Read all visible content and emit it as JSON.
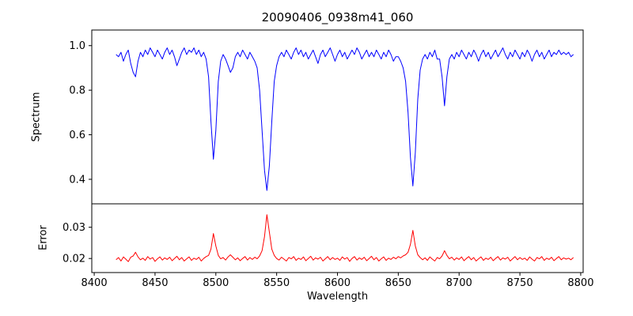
{
  "x": {
    "label": "Wavelength",
    "lim": [
      8398,
      8802
    ],
    "ticks": {
      "values": [
        8400,
        8450,
        8500,
        8550,
        8600,
        8650,
        8700,
        8750,
        8800
      ],
      "labels": [
        "8400",
        "8450",
        "8500",
        "8550",
        "8600",
        "8650",
        "8700",
        "8750",
        "8800"
      ]
    }
  },
  "chart_data": [
    {
      "type": "line",
      "name": "spectrum",
      "title": "20090406_0938m41_060",
      "xlabel": "",
      "ylabel": "Spectrum",
      "color": "#0000ff",
      "x0": 8418,
      "dx": 2,
      "ylim": [
        0.29,
        1.07
      ],
      "yticks": {
        "values": [
          0.4,
          0.6,
          0.8,
          1.0
        ],
        "labels": [
          "0.4",
          "0.6",
          "0.8",
          "1.0"
        ]
      },
      "absorption_line_centers": [
        8498,
        8542,
        8662,
        8688
      ],
      "values": [
        0.96,
        0.95,
        0.97,
        0.93,
        0.96,
        0.98,
        0.92,
        0.88,
        0.86,
        0.93,
        0.97,
        0.95,
        0.98,
        0.96,
        0.99,
        0.97,
        0.95,
        0.98,
        0.96,
        0.94,
        0.97,
        0.99,
        0.96,
        0.98,
        0.95,
        0.91,
        0.94,
        0.97,
        0.99,
        0.96,
        0.98,
        0.97,
        0.99,
        0.96,
        0.98,
        0.95,
        0.97,
        0.94,
        0.86,
        0.66,
        0.49,
        0.62,
        0.84,
        0.93,
        0.96,
        0.94,
        0.91,
        0.88,
        0.9,
        0.95,
        0.97,
        0.95,
        0.98,
        0.96,
        0.94,
        0.97,
        0.95,
        0.93,
        0.9,
        0.8,
        0.62,
        0.44,
        0.35,
        0.46,
        0.66,
        0.84,
        0.91,
        0.95,
        0.97,
        0.95,
        0.98,
        0.96,
        0.94,
        0.97,
        0.99,
        0.96,
        0.98,
        0.95,
        0.97,
        0.94,
        0.96,
        0.98,
        0.95,
        0.92,
        0.96,
        0.98,
        0.95,
        0.97,
        0.99,
        0.96,
        0.93,
        0.96,
        0.98,
        0.95,
        0.97,
        0.94,
        0.96,
        0.98,
        0.96,
        0.99,
        0.97,
        0.94,
        0.96,
        0.98,
        0.95,
        0.97,
        0.95,
        0.98,
        0.96,
        0.94,
        0.97,
        0.95,
        0.98,
        0.96,
        0.93,
        0.95,
        0.95,
        0.93,
        0.9,
        0.84,
        0.7,
        0.5,
        0.37,
        0.52,
        0.76,
        0.89,
        0.94,
        0.96,
        0.94,
        0.97,
        0.95,
        0.98,
        0.94,
        0.94,
        0.86,
        0.73,
        0.86,
        0.94,
        0.96,
        0.94,
        0.97,
        0.95,
        0.98,
        0.96,
        0.94,
        0.97,
        0.95,
        0.98,
        0.96,
        0.93,
        0.96,
        0.98,
        0.95,
        0.97,
        0.94,
        0.96,
        0.98,
        0.95,
        0.97,
        0.99,
        0.96,
        0.94,
        0.97,
        0.95,
        0.98,
        0.96,
        0.94,
        0.97,
        0.95,
        0.98,
        0.96,
        0.93,
        0.96,
        0.98,
        0.95,
        0.97,
        0.94,
        0.96,
        0.98,
        0.95,
        0.97,
        0.96,
        0.98,
        0.96,
        0.97,
        0.96,
        0.97,
        0.95,
        0.96
      ]
    },
    {
      "type": "line",
      "name": "error",
      "xlabel": "Wavelength",
      "ylabel": "Error",
      "color": "#ff0000",
      "x0": 8418,
      "dx": 2,
      "ylim": [
        0.0155,
        0.0375
      ],
      "yticks": {
        "values": [
          0.02,
          0.03
        ],
        "labels": [
          "0.02",
          "0.03"
        ]
      },
      "peak_centers": [
        8498,
        8542,
        8662,
        8688
      ],
      "values": [
        0.0196,
        0.0203,
        0.0192,
        0.0205,
        0.0198,
        0.019,
        0.0204,
        0.0208,
        0.022,
        0.0205,
        0.0196,
        0.0201,
        0.0194,
        0.0206,
        0.0198,
        0.0203,
        0.0191,
        0.0199,
        0.0205,
        0.0195,
        0.0202,
        0.0197,
        0.0204,
        0.0193,
        0.02,
        0.0207,
        0.0196,
        0.0203,
        0.0192,
        0.0199,
        0.0205,
        0.0194,
        0.0201,
        0.0197,
        0.0204,
        0.0192,
        0.02,
        0.0206,
        0.021,
        0.023,
        0.028,
        0.024,
        0.021,
        0.0199,
        0.0203,
        0.0195,
        0.0205,
        0.0212,
        0.0204,
        0.0196,
        0.0202,
        0.0193,
        0.02,
        0.0206,
        0.0195,
        0.0203,
        0.0197,
        0.0204,
        0.0199,
        0.0208,
        0.0225,
        0.027,
        0.034,
        0.0285,
        0.023,
        0.021,
        0.02,
        0.0195,
        0.0204,
        0.0198,
        0.0192,
        0.0203,
        0.0199,
        0.0206,
        0.0194,
        0.0201,
        0.0197,
        0.0205,
        0.0193,
        0.02,
        0.0207,
        0.0195,
        0.0202,
        0.0198,
        0.0204,
        0.0192,
        0.0199,
        0.0206,
        0.0196,
        0.0203,
        0.0197,
        0.0201,
        0.0194,
        0.0205,
        0.0198,
        0.0203,
        0.0191,
        0.02,
        0.0206,
        0.0195,
        0.0202,
        0.0197,
        0.0204,
        0.0193,
        0.02,
        0.0207,
        0.0196,
        0.0203,
        0.0192,
        0.0199,
        0.0205,
        0.0194,
        0.0201,
        0.0197,
        0.0204,
        0.0199,
        0.0206,
        0.0202,
        0.0208,
        0.0212,
        0.022,
        0.0245,
        0.029,
        0.024,
        0.0212,
        0.0203,
        0.0196,
        0.0202,
        0.0194,
        0.0205,
        0.0198,
        0.0192,
        0.0203,
        0.0199,
        0.0208,
        0.0225,
        0.021,
        0.0199,
        0.0204,
        0.0195,
        0.0202,
        0.0197,
        0.0205,
        0.0193,
        0.02,
        0.0206,
        0.0196,
        0.0203,
        0.0192,
        0.0199,
        0.0205,
        0.0194,
        0.0201,
        0.0197,
        0.0204,
        0.0193,
        0.02,
        0.0206,
        0.0195,
        0.0202,
        0.0198,
        0.0204,
        0.0192,
        0.0199,
        0.0206,
        0.0196,
        0.0203,
        0.0197,
        0.0201,
        0.0194,
        0.0205,
        0.0198,
        0.0192,
        0.0203,
        0.0199,
        0.0206,
        0.0194,
        0.0201,
        0.0197,
        0.0204,
        0.0193,
        0.02,
        0.0206,
        0.0196,
        0.0202,
        0.0198,
        0.0201,
        0.0196,
        0.0203
      ]
    }
  ]
}
